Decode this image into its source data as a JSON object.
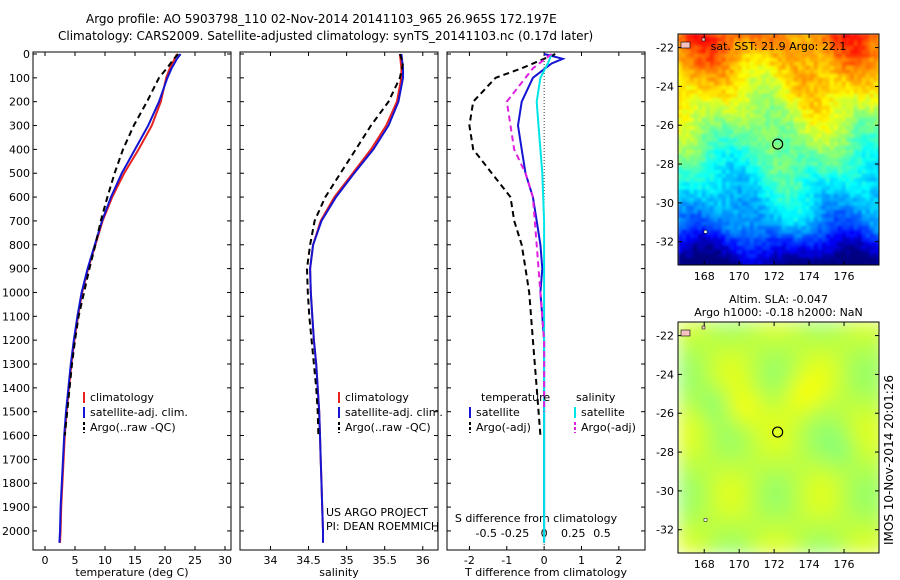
{
  "header": {
    "title_line1": "Argo profile: AO 5903798_110 02-Nov-2014 20141103_965 26.965S 172.197E",
    "title_line2": "Climatology: CARS2009. Satellite-adjusted climatology: synTS_20141103.nc (0.17d later)"
  },
  "side_label": "IMOS 10-Nov-2014 20:01:26",
  "project_credit": {
    "line1": "US ARGO PROJECT",
    "line2": "PI: DEAN ROEMMICH"
  },
  "depth_ticks": [
    0,
    100,
    200,
    300,
    400,
    500,
    600,
    700,
    800,
    900,
    1000,
    1100,
    1200,
    1300,
    1400,
    1500,
    1600,
    1700,
    1800,
    1900,
    2000
  ],
  "colors": {
    "climatology": "#e8231f",
    "satellite": "#1414d2",
    "argo": "#000000",
    "salinity_sat": "#00e5e5",
    "salinity_argo": "#e020e0"
  },
  "chart_data": [
    {
      "type": "line",
      "id": "temperature",
      "xlabel": "temperature (deg C)",
      "xlim": [
        -2,
        31
      ],
      "xticks": [
        0,
        5,
        10,
        15,
        20,
        25,
        30
      ],
      "ylim": [
        0,
        2080
      ],
      "legend": {
        "placement": "lower-middle",
        "entries": [
          "climatology",
          "satellite-adj. clim.",
          "Argo(..raw -QC)"
        ]
      },
      "series": [
        {
          "name": "climatology",
          "color": "#e8231f",
          "dash": "",
          "points": [
            [
              22.0,
              0
            ],
            [
              21.6,
              20
            ],
            [
              20.8,
              60
            ],
            [
              20.2,
              100
            ],
            [
              19.3,
              200
            ],
            [
              17.8,
              300
            ],
            [
              15.6,
              400
            ],
            [
              13.2,
              500
            ],
            [
              11.2,
              600
            ],
            [
              9.6,
              700
            ],
            [
              8.4,
              800
            ],
            [
              7.2,
              900
            ],
            [
              6.2,
              1000
            ],
            [
              5.5,
              1100
            ],
            [
              4.9,
              1200
            ],
            [
              4.4,
              1300
            ],
            [
              4.0,
              1400
            ],
            [
              3.6,
              1500
            ],
            [
              3.3,
              1600
            ],
            [
              3.1,
              1700
            ],
            [
              2.9,
              1800
            ],
            [
              2.7,
              1900
            ],
            [
              2.6,
              2000
            ],
            [
              2.5,
              2050
            ]
          ]
        },
        {
          "name": "satellite-adj. clim.",
          "color": "#1414d2",
          "dash": "",
          "points": [
            [
              22.6,
              0
            ],
            [
              22.0,
              20
            ],
            [
              21.1,
              60
            ],
            [
              20.4,
              100
            ],
            [
              19.0,
              200
            ],
            [
              17.2,
              300
            ],
            [
              15.0,
              400
            ],
            [
              12.8,
              500
            ],
            [
              11.0,
              600
            ],
            [
              9.5,
              700
            ],
            [
              8.3,
              800
            ],
            [
              7.1,
              900
            ],
            [
              6.1,
              1000
            ],
            [
              5.4,
              1100
            ],
            [
              4.8,
              1200
            ],
            [
              4.3,
              1300
            ],
            [
              3.9,
              1400
            ],
            [
              3.5,
              1500
            ],
            [
              3.2,
              1600
            ],
            [
              3.0,
              1700
            ],
            [
              2.8,
              1800
            ],
            [
              2.6,
              1900
            ],
            [
              2.5,
              2000
            ],
            [
              2.4,
              2050
            ]
          ]
        },
        {
          "name": "Argo(..raw -QC)",
          "color": "#000000",
          "dash": "6,4",
          "points": [
            [
              22.2,
              0
            ],
            [
              21.5,
              20
            ],
            [
              20.3,
              60
            ],
            [
              19.0,
              100
            ],
            [
              17.0,
              200
            ],
            [
              14.8,
              300
            ],
            [
              13.0,
              400
            ],
            [
              11.6,
              500
            ],
            [
              10.4,
              600
            ],
            [
              9.3,
              700
            ],
            [
              8.4,
              800
            ],
            [
              7.4,
              900
            ],
            [
              6.5,
              1000
            ],
            [
              5.6,
              1100
            ],
            [
              5.0,
              1200
            ],
            [
              4.5,
              1300
            ],
            [
              4.1,
              1400
            ],
            [
              3.7,
              1500
            ],
            [
              3.3,
              1600
            ]
          ]
        }
      ]
    },
    {
      "type": "line",
      "id": "salinity",
      "xlabel": "salinity",
      "xlim": [
        33.6,
        36.2
      ],
      "xticks": [
        34,
        34.5,
        35,
        35.5,
        36
      ],
      "ylim": [
        0,
        2080
      ],
      "legend": {
        "placement": "lower-right",
        "entries": [
          "climatology",
          "satellite-adj. clim.",
          "Argo(..raw -QC)"
        ]
      },
      "series": [
        {
          "name": "climatology",
          "color": "#e8231f",
          "dash": "",
          "points": [
            [
              35.7,
              0
            ],
            [
              35.72,
              60
            ],
            [
              35.72,
              100
            ],
            [
              35.66,
              200
            ],
            [
              35.52,
              300
            ],
            [
              35.32,
              400
            ],
            [
              35.08,
              500
            ],
            [
              34.84,
              600
            ],
            [
              34.66,
              700
            ],
            [
              34.56,
              800
            ],
            [
              34.52,
              900
            ],
            [
              34.53,
              1000
            ],
            [
              34.55,
              1100
            ],
            [
              34.57,
              1200
            ],
            [
              34.6,
              1300
            ],
            [
              34.62,
              1400
            ],
            [
              34.64,
              1500
            ],
            [
              34.65,
              1600
            ],
            [
              34.66,
              1700
            ],
            [
              34.67,
              1800
            ],
            [
              34.68,
              1900
            ],
            [
              34.69,
              2000
            ],
            [
              34.69,
              2050
            ]
          ]
        },
        {
          "name": "satellite-adj. clim.",
          "color": "#1414d2",
          "dash": "",
          "points": [
            [
              35.72,
              0
            ],
            [
              35.74,
              60
            ],
            [
              35.74,
              100
            ],
            [
              35.68,
              200
            ],
            [
              35.55,
              300
            ],
            [
              35.35,
              400
            ],
            [
              35.1,
              500
            ],
            [
              34.86,
              600
            ],
            [
              34.67,
              700
            ],
            [
              34.56,
              800
            ],
            [
              34.52,
              900
            ],
            [
              34.53,
              1000
            ],
            [
              34.55,
              1100
            ],
            [
              34.57,
              1200
            ],
            [
              34.6,
              1300
            ],
            [
              34.62,
              1400
            ],
            [
              34.64,
              1500
            ],
            [
              34.65,
              1600
            ],
            [
              34.66,
              1700
            ],
            [
              34.67,
              1800
            ],
            [
              34.68,
              1900
            ],
            [
              34.69,
              2000
            ],
            [
              34.69,
              2050
            ]
          ]
        },
        {
          "name": "Argo(..raw -QC)",
          "color": "#000000",
          "dash": "6,4",
          "points": [
            [
              35.7,
              0
            ],
            [
              35.74,
              40
            ],
            [
              35.7,
              100
            ],
            [
              35.55,
              200
            ],
            [
              35.32,
              300
            ],
            [
              35.12,
              400
            ],
            [
              34.92,
              500
            ],
            [
              34.72,
              600
            ],
            [
              34.58,
              700
            ],
            [
              34.52,
              800
            ],
            [
              34.48,
              900
            ],
            [
              34.49,
              1000
            ],
            [
              34.51,
              1100
            ],
            [
              34.54,
              1200
            ],
            [
              34.57,
              1300
            ],
            [
              34.6,
              1400
            ],
            [
              34.62,
              1500
            ],
            [
              34.63,
              1600
            ]
          ]
        }
      ]
    },
    {
      "type": "line",
      "id": "difference",
      "xlabel": "T difference from climatology",
      "xlabel_top": "S difference from climatology",
      "xlim": [
        -2.6,
        2.7
      ],
      "xticks": [
        -2,
        -1,
        0,
        1,
        2
      ],
      "xticks_top": [
        {
          "x": -1.55,
          "label": "-0.5"
        },
        {
          "x": -0.78,
          "label": "-0.25"
        },
        {
          "x": 0,
          "label": "0"
        },
        {
          "x": 0.78,
          "label": "0.25"
        },
        {
          "x": 1.55,
          "label": "0.5"
        }
      ],
      "ylim": [
        0,
        2080
      ],
      "legend": {
        "placement": "lower",
        "group_labels": [
          "temperature",
          "salinity"
        ],
        "entries": [
          "satellite",
          "Argo(-adj)",
          "satellite",
          "Argo(-adj)"
        ]
      },
      "series": [
        {
          "name": "satellite",
          "color": "#1414d2",
          "dash": "",
          "points": [
            [
              0,
              0
            ],
            [
              0.5,
              20
            ],
            [
              0.2,
              40
            ],
            [
              -0.3,
              100
            ],
            [
              -0.6,
              200
            ],
            [
              -0.7,
              300
            ],
            [
              -0.6,
              400
            ],
            [
              -0.5,
              500
            ],
            [
              -0.3,
              600
            ],
            [
              -0.2,
              700
            ],
            [
              -0.1,
              800
            ],
            [
              -0.05,
              900
            ],
            [
              -0.1,
              1000
            ],
            [
              -0.05,
              1100
            ],
            [
              0,
              1200
            ],
            [
              0,
              1500
            ],
            [
              0,
              2050
            ]
          ]
        },
        {
          "name": "Argo(-adj)",
          "color": "#000000",
          "dash": "6,4",
          "points": [
            [
              0.3,
              0
            ],
            [
              0,
              20
            ],
            [
              -0.6,
              60
            ],
            [
              -1.3,
              100
            ],
            [
              -1.9,
              200
            ],
            [
              -2.0,
              300
            ],
            [
              -1.9,
              400
            ],
            [
              -1.4,
              500
            ],
            [
              -0.9,
              600
            ],
            [
              -0.8,
              700
            ],
            [
              -0.6,
              800
            ],
            [
              -0.5,
              900
            ],
            [
              -0.4,
              1000
            ],
            [
              -0.3,
              1200
            ],
            [
              -0.2,
              1400
            ],
            [
              -0.1,
              1600
            ]
          ]
        },
        {
          "name": "satellite",
          "color": "#00e5e5",
          "dash": "",
          "points": [
            [
              0.2,
              0
            ],
            [
              0.1,
              40
            ],
            [
              -0.1,
              100
            ],
            [
              -0.2,
              200
            ],
            [
              -0.15,
              300
            ],
            [
              -0.1,
              400
            ],
            [
              -0.05,
              500
            ],
            [
              0,
              700
            ],
            [
              0,
              1000
            ],
            [
              0,
              2050
            ]
          ]
        },
        {
          "name": "Argo(-adj)",
          "color": "#e020e0",
          "dash": "6,4",
          "points": [
            [
              0.2,
              0
            ],
            [
              -0.3,
              60
            ],
            [
              -0.6,
              120
            ],
            [
              -1.0,
              200
            ],
            [
              -0.9,
              300
            ],
            [
              -0.8,
              400
            ],
            [
              -0.5,
              500
            ],
            [
              -0.3,
              600
            ],
            [
              -0.2,
              800
            ],
            [
              -0.1,
              1000
            ],
            [
              0,
              1200
            ],
            [
              0,
              1500
            ]
          ]
        }
      ]
    },
    {
      "type": "heatmap",
      "id": "sst-map",
      "title": "sat. SST: 21.9 Argo: 22.1",
      "xlim": [
        166.5,
        178
      ],
      "ylim": [
        -33.2,
        -21.3
      ],
      "xticks": [
        168,
        170,
        172,
        174,
        176
      ],
      "yticks": [
        -22,
        -24,
        -26,
        -28,
        -30,
        -32
      ],
      "marker": {
        "lon": 172.2,
        "lat": -26.97
      }
    },
    {
      "type": "heatmap",
      "id": "sla-map",
      "title_line1": "Altim. SLA: -0.047",
      "title_line2": "Argo h1000: -0.18 h2000: NaN",
      "xlim": [
        166.5,
        178
      ],
      "ylim": [
        -33.2,
        -21.3
      ],
      "xticks": [
        168,
        170,
        172,
        174,
        176
      ],
      "yticks": [
        -22,
        -24,
        -26,
        -28,
        -30,
        -32
      ],
      "marker": {
        "lon": 172.2,
        "lat": -26.97
      }
    }
  ]
}
